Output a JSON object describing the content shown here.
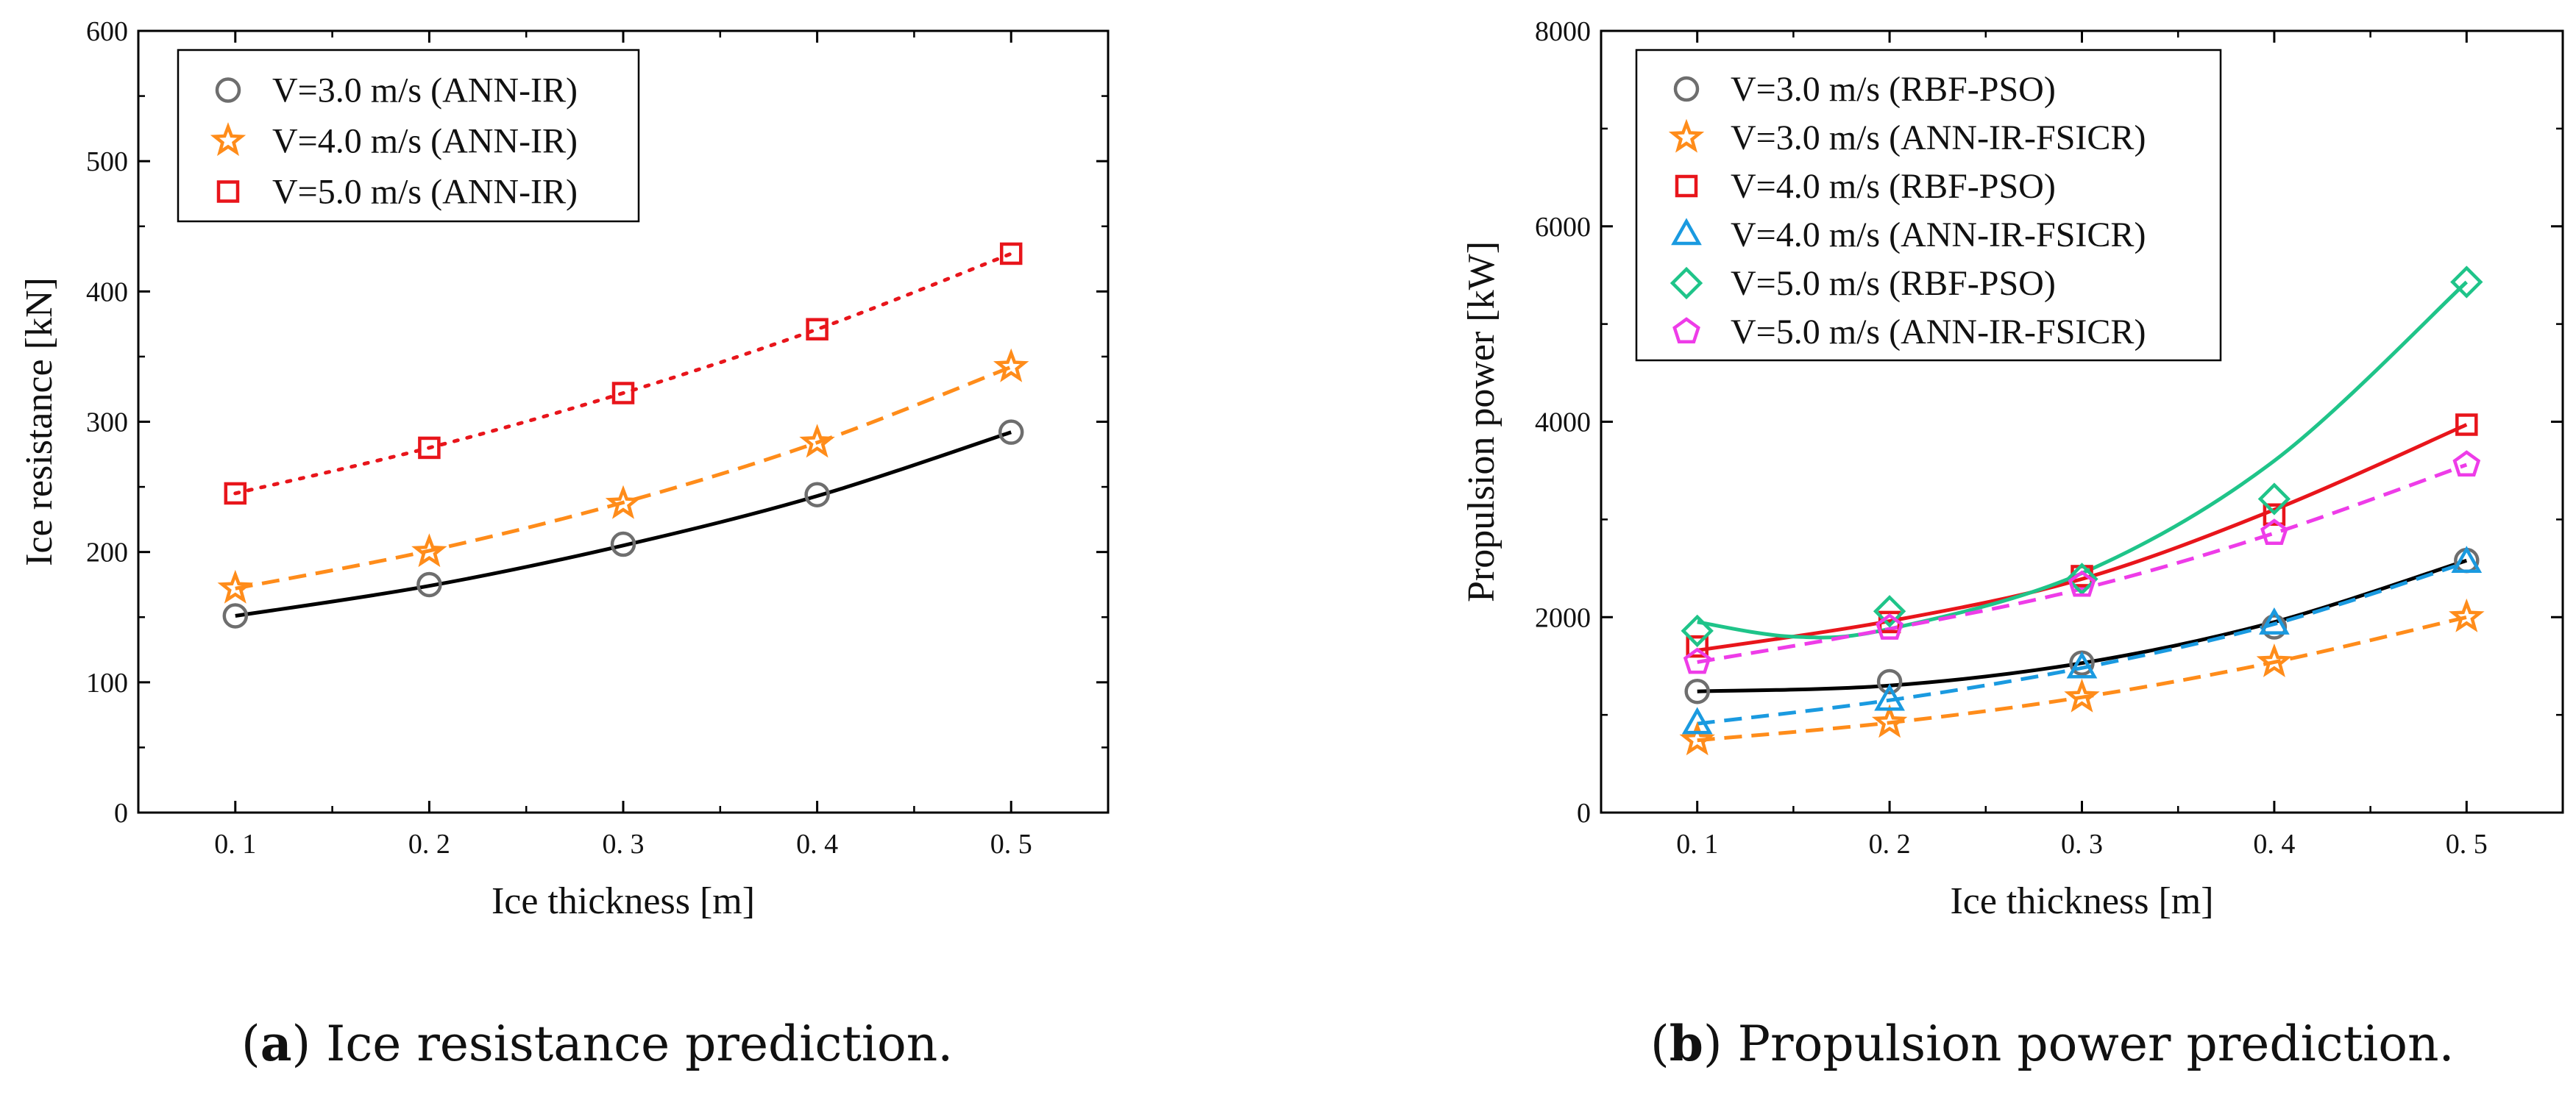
{
  "panel_a": {
    "caption_letter": "a",
    "caption_text": "Ice resistance prediction."
  },
  "panel_b": {
    "caption_letter": "b",
    "caption_text": "Propulsion power prediction."
  },
  "chart_data": [
    {
      "type": "scatter",
      "panel": "a",
      "title": "",
      "xlabel": "Ice thickness [m]",
      "ylabel": "Ice resistance [kN]",
      "xlim": [
        0.05,
        0.55
      ],
      "ylim": [
        0,
        600
      ],
      "xticks": [
        0.1,
        0.2,
        0.3,
        0.4,
        0.5
      ],
      "xtick_labels": [
        "0. 1",
        "0. 2",
        "0. 3",
        "0. 4",
        "0. 5"
      ],
      "yticks": [
        0,
        100,
        200,
        300,
        400,
        500,
        600
      ],
      "legend_position": "top-left",
      "series": [
        {
          "name": "V=3.0 m/s (ANN-IR)",
          "marker": "circle",
          "color": "#6e6e6e",
          "x": [
            0.1,
            0.2,
            0.3,
            0.4,
            0.5
          ],
          "y": [
            151,
            175,
            206,
            244,
            292
          ],
          "fit": {
            "color": "#000000",
            "dash": "solid",
            "x": [
              0.1,
              0.2,
              0.3,
              0.4,
              0.5
            ],
            "y": [
              151,
              174,
              205,
              243,
              292
            ]
          }
        },
        {
          "name": "V=4.0 m/s (ANN-IR)",
          "marker": "star",
          "color": "#ff8c1a",
          "x": [
            0.1,
            0.2,
            0.3,
            0.4,
            0.5
          ],
          "y": [
            172,
            200,
            237,
            284,
            342
          ],
          "fit": {
            "color": "#ff8c1a",
            "dash": "dashed",
            "x": [
              0.1,
              0.2,
              0.3,
              0.4,
              0.5
            ],
            "y": [
              172,
              201,
              238,
              284,
              342
            ]
          }
        },
        {
          "name": "V=5.0 m/s (ANN-IR)",
          "marker": "square",
          "color": "#e8151b",
          "x": [
            0.1,
            0.2,
            0.3,
            0.4,
            0.5
          ],
          "y": [
            245,
            280,
            322,
            371,
            429
          ],
          "fit": {
            "color": "#e8151b",
            "dash": "dotted",
            "x": [
              0.1,
              0.2,
              0.3,
              0.4,
              0.5
            ],
            "y": [
              245,
              280,
              322,
              371,
              429
            ]
          }
        }
      ]
    },
    {
      "type": "scatter",
      "panel": "b",
      "title": "",
      "xlabel": "Ice thickness [m]",
      "ylabel": "Propulsion power [kW]",
      "xlim": [
        0.05,
        0.55
      ],
      "ylim": [
        0,
        8000
      ],
      "xticks": [
        0.1,
        0.2,
        0.3,
        0.4,
        0.5
      ],
      "xtick_labels": [
        "0. 1",
        "0. 2",
        "0. 3",
        "0. 4",
        "0. 5"
      ],
      "yticks": [
        0,
        2000,
        4000,
        6000,
        8000
      ],
      "legend_position": "top-left",
      "series": [
        {
          "name": "V=3.0 m/s (RBF-PSO)",
          "marker": "circle",
          "color": "#6e6e6e",
          "x": [
            0.1,
            0.2,
            0.3,
            0.4,
            0.5
          ],
          "y": [
            1240,
            1340,
            1530,
            1900,
            2580
          ],
          "fit": {
            "color": "#000000",
            "dash": "solid",
            "x": [
              0.1,
              0.2,
              0.3,
              0.4,
              0.5
            ],
            "y": [
              1240,
              1300,
              1530,
              1950,
              2580
            ]
          }
        },
        {
          "name": "V=3.0 m/s (ANN-IR-FSICR)",
          "marker": "star",
          "color": "#ff8c1a",
          "x": [
            0.1,
            0.2,
            0.3,
            0.4,
            0.5
          ],
          "y": [
            740,
            920,
            1180,
            1540,
            2000
          ],
          "fit": {
            "color": "#ff8c1a",
            "dash": "dashed",
            "x": [
              0.1,
              0.2,
              0.3,
              0.4,
              0.5
            ],
            "y": [
              740,
              920,
              1180,
              1540,
              2000
            ]
          }
        },
        {
          "name": "V=4.0 m/s (RBF-PSO)",
          "marker": "square",
          "color": "#e8151b",
          "x": [
            0.1,
            0.2,
            0.3,
            0.4,
            0.5
          ],
          "y": [
            1700,
            1950,
            2420,
            3050,
            3970
          ],
          "fit": {
            "color": "#e8151b",
            "dash": "solid",
            "x": [
              0.1,
              0.2,
              0.3,
              0.4,
              0.5
            ],
            "y": [
              1660,
              1960,
              2390,
              3100,
              3970
            ]
          }
        },
        {
          "name": "V=4.0 m/s (ANN-IR-FSICR)",
          "marker": "triangle",
          "color": "#1a9ae0",
          "x": [
            0.1,
            0.2,
            0.3,
            0.4,
            0.5
          ],
          "y": [
            910,
            1150,
            1480,
            1930,
            2560
          ],
          "fit": {
            "color": "#1a9ae0",
            "dash": "dashed",
            "x": [
              0.1,
              0.2,
              0.3,
              0.4,
              0.5
            ],
            "y": [
              910,
              1150,
              1480,
              1930,
              2560
            ]
          }
        },
        {
          "name": "V=5.0 m/s (RBF-PSO)",
          "marker": "diamond",
          "color": "#1fc489",
          "x": [
            0.1,
            0.2,
            0.3,
            0.4,
            0.5
          ],
          "y": [
            1860,
            2060,
            2390,
            3210,
            5430
          ],
          "fit": {
            "color": "#1fc489",
            "dash": "solid",
            "x": [
              0.1,
              0.15,
              0.2,
              0.3,
              0.4,
              0.5
            ],
            "y": [
              1950,
              1800,
              1880,
              2450,
              3600,
              5430
            ]
          }
        },
        {
          "name": "V=5.0 m/s (ANN-IR-FSICR)",
          "marker": "pentagon",
          "color": "#ee3ce8",
          "x": [
            0.1,
            0.2,
            0.3,
            0.4,
            0.5
          ],
          "y": [
            1540,
            1890,
            2330,
            2860,
            3560
          ],
          "fit": {
            "color": "#ee3ce8",
            "dash": "dashed",
            "x": [
              0.1,
              0.2,
              0.3,
              0.4,
              0.5
            ],
            "y": [
              1540,
              1880,
              2290,
              2860,
              3560
            ]
          }
        }
      ]
    }
  ]
}
